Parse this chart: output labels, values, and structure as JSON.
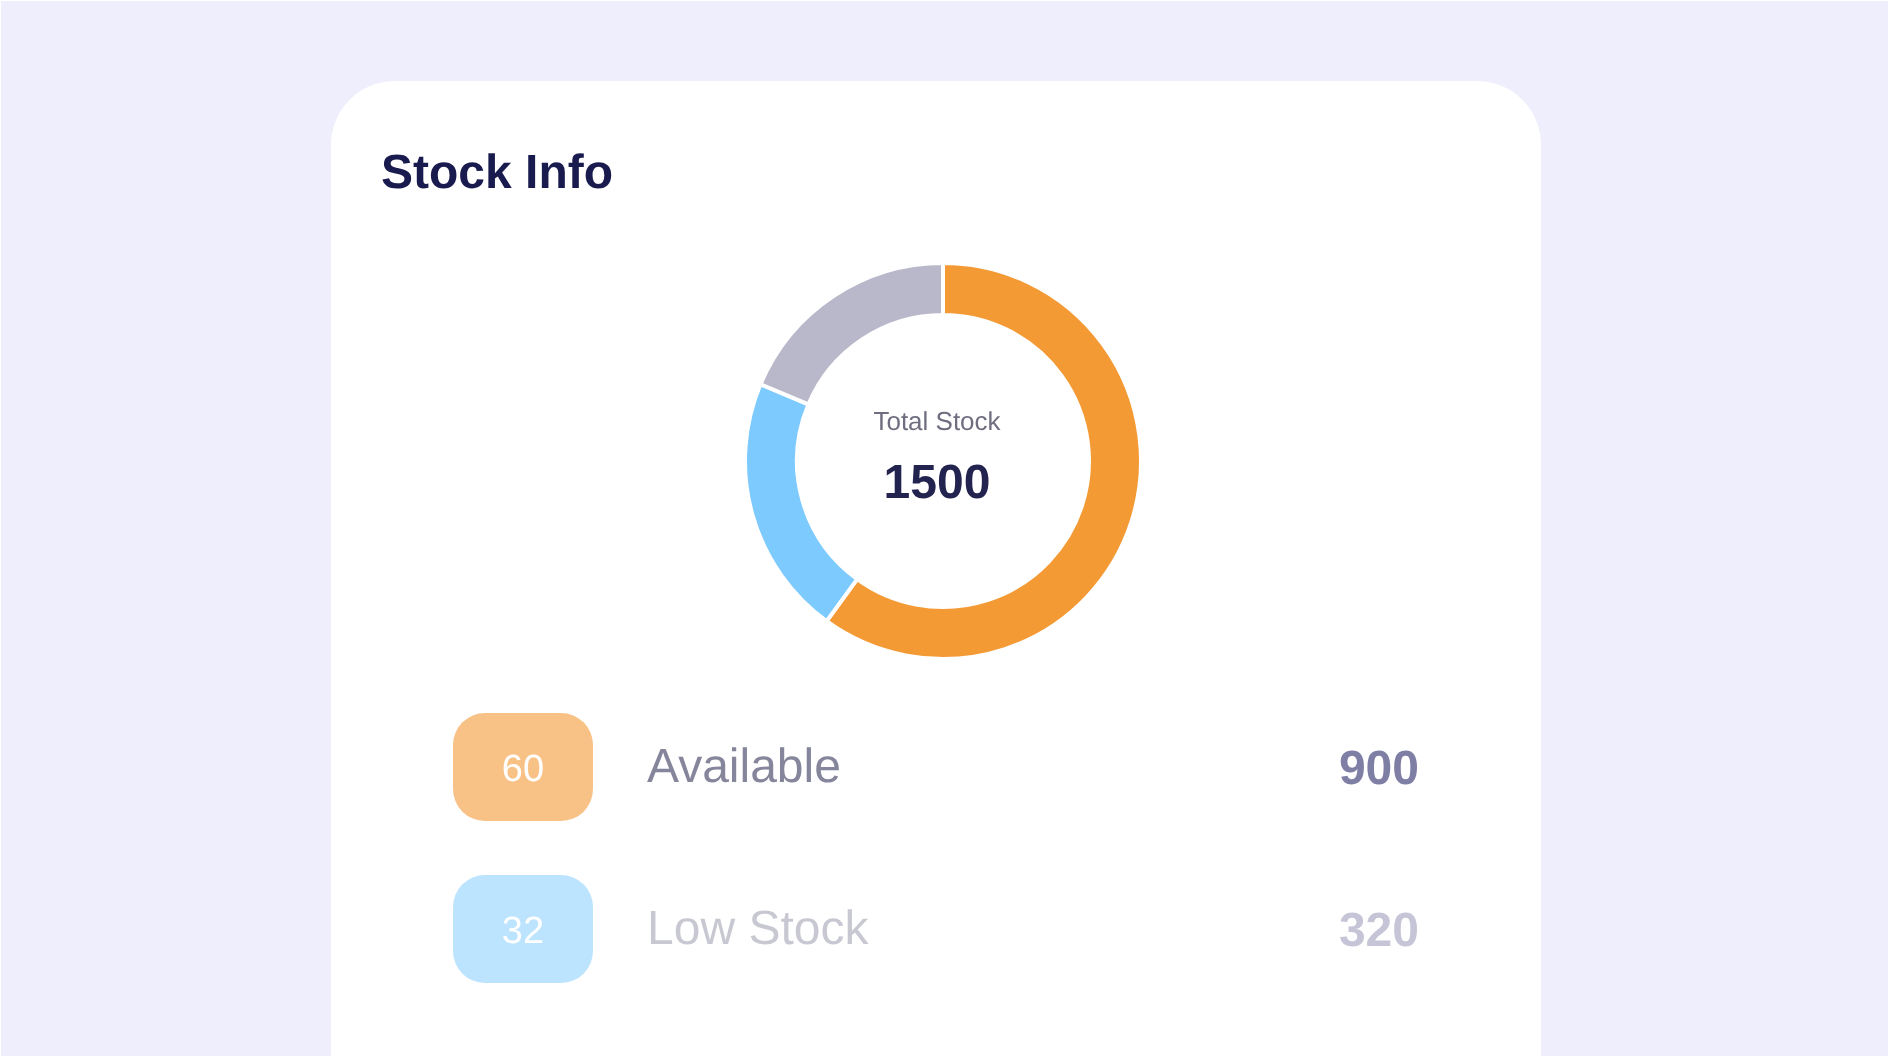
{
  "chart_data": {
    "type": "donut",
    "title": "Stock Info",
    "categories": [
      "Available",
      "Low Stock",
      null
    ],
    "values": [
      900,
      320,
      280
    ],
    "colors": [
      "#f49a35",
      "#7ccafe",
      "#b8b8ca"
    ],
    "value_labels": [
      "900",
      "320",
      null
    ],
    "legend": "bottom",
    "annotations": [
      "Total Stock",
      "1500",
      "60",
      "32"
    ]
  }
}
